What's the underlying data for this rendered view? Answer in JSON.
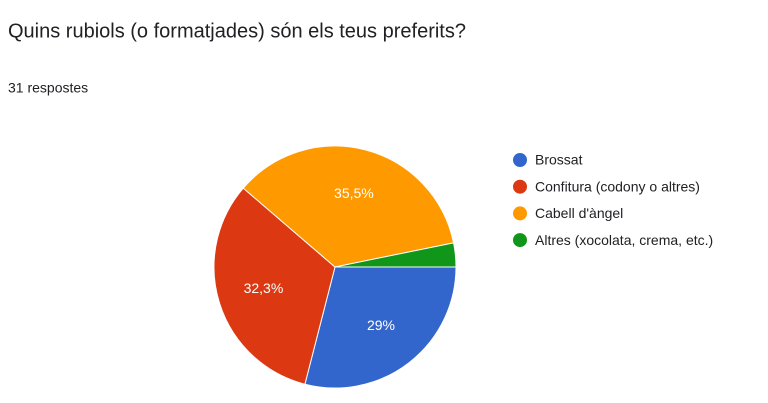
{
  "chart_data": {
    "type": "pie",
    "title": "Quins rubiols (o formatjades) són els teus preferits?",
    "subtitle": "31 respostes",
    "categories": [
      "Brossat",
      "Confitura (codony o altres)",
      "Cabell d'àngel",
      "Altres (xocolata, crema, etc.)"
    ],
    "values": [
      29,
      32.3,
      35.5,
      3.2
    ],
    "value_labels": [
      "29%",
      "32,3%",
      "35,5%",
      null
    ],
    "colors": [
      "#3366cc",
      "#dc3912",
      "#ff9900",
      "#109618"
    ],
    "legend": "right"
  }
}
